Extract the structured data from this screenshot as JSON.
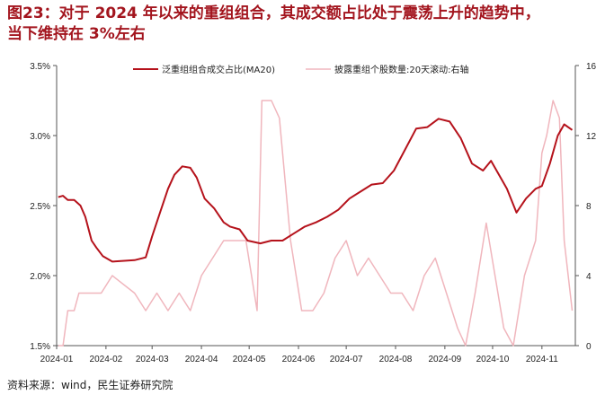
{
  "title": {
    "line1": "图23：对于 2024 年以来的重组组合，其成交额占比处于震荡上升的趋势中，",
    "line2": "当下维持在 3%左右"
  },
  "source": "资料来源：wind，民生证券研究院",
  "colors": {
    "series1": "#b5121b",
    "series2": "#f0b6bd",
    "axis": "#555555"
  },
  "chart_data": {
    "type": "line",
    "x_ticks": [
      "2024-01",
      "2024-02",
      "2024-03",
      "2024-04",
      "2024-05",
      "2024-06",
      "2024-07",
      "2024-08",
      "2024-09",
      "2024-10",
      "2024-11"
    ],
    "y_left": {
      "ticks": [
        "1.5%",
        "2.0%",
        "2.5%",
        "3.0%",
        "3.5%"
      ],
      "range": [
        1.5,
        3.5
      ]
    },
    "y_right": {
      "ticks": [
        "0",
        "4",
        "8",
        "12",
        "16"
      ],
      "range": [
        0,
        16
      ]
    },
    "legend_position": "top",
    "series": [
      {
        "name": "泛重组组合成交占比(MA20)",
        "axis": "left",
        "x": [
          "2024-01-02",
          "2024-01-05",
          "2024-01-08",
          "2024-01-12",
          "2024-01-16",
          "2024-01-19",
          "2024-01-23",
          "2024-01-26",
          "2024-01-30",
          "2024-02-05",
          "2024-02-19",
          "2024-02-26",
          "2024-03-01",
          "2024-03-06",
          "2024-03-11",
          "2024-03-15",
          "2024-03-20",
          "2024-03-25",
          "2024-03-29",
          "2024-04-03",
          "2024-04-09",
          "2024-04-15",
          "2024-04-19",
          "2024-04-25",
          "2024-04-30",
          "2024-05-08",
          "2024-05-15",
          "2024-05-22",
          "2024-05-29",
          "2024-06-05",
          "2024-06-12",
          "2024-06-19",
          "2024-06-26",
          "2024-07-03",
          "2024-07-10",
          "2024-07-17",
          "2024-07-24",
          "2024-07-31",
          "2024-08-07",
          "2024-08-14",
          "2024-08-21",
          "2024-08-28",
          "2024-09-04",
          "2024-09-11",
          "2024-09-18",
          "2024-09-25",
          "2024-09-30",
          "2024-10-10",
          "2024-10-16",
          "2024-10-22",
          "2024-10-28",
          "2024-11-01",
          "2024-11-06",
          "2024-11-11",
          "2024-11-15",
          "2024-11-20"
        ],
        "values": [
          2.56,
          2.57,
          2.54,
          2.54,
          2.5,
          2.42,
          2.25,
          2.2,
          2.14,
          2.1,
          2.11,
          2.13,
          2.28,
          2.45,
          2.62,
          2.72,
          2.78,
          2.77,
          2.7,
          2.55,
          2.48,
          2.38,
          2.35,
          2.33,
          2.25,
          2.23,
          2.25,
          2.25,
          2.3,
          2.35,
          2.38,
          2.42,
          2.47,
          2.55,
          2.6,
          2.65,
          2.66,
          2.75,
          2.9,
          3.05,
          3.06,
          3.12,
          3.1,
          2.98,
          2.8,
          2.75,
          2.82,
          2.62,
          2.45,
          2.55,
          2.62,
          2.64,
          2.8,
          3.0,
          3.08,
          3.04
        ]
      },
      {
        "name": "披露重组个股数量:20天滚动:右轴",
        "axis": "right",
        "x": [
          "2024-01-02",
          "2024-01-05",
          "2024-01-08",
          "2024-01-12",
          "2024-01-15",
          "2024-01-22",
          "2024-01-29",
          "2024-02-05",
          "2024-02-19",
          "2024-02-26",
          "2024-03-04",
          "2024-03-11",
          "2024-03-18",
          "2024-03-25",
          "2024-04-01",
          "2024-04-08",
          "2024-04-15",
          "2024-04-22",
          "2024-04-29",
          "2024-05-06",
          "2024-05-09",
          "2024-05-15",
          "2024-05-20",
          "2024-05-27",
          "2024-06-03",
          "2024-06-10",
          "2024-06-17",
          "2024-06-24",
          "2024-07-01",
          "2024-07-08",
          "2024-07-15",
          "2024-07-22",
          "2024-07-29",
          "2024-08-05",
          "2024-08-12",
          "2024-08-19",
          "2024-08-26",
          "2024-09-02",
          "2024-09-09",
          "2024-09-14",
          "2024-09-20",
          "2024-09-27",
          "2024-10-08",
          "2024-10-14",
          "2024-10-21",
          "2024-10-28",
          "2024-11-01",
          "2024-11-04",
          "2024-11-08",
          "2024-11-12",
          "2024-11-15",
          "2024-11-20"
        ],
        "values": [
          0,
          0,
          2,
          2,
          3,
          3,
          3,
          4,
          3,
          2,
          3,
          2,
          3,
          2,
          4,
          5,
          6,
          6,
          6,
          2,
          14,
          14,
          13,
          6,
          2,
          2,
          3,
          5,
          6,
          4,
          5,
          4,
          3,
          3,
          2,
          4,
          5,
          3,
          1,
          0,
          3,
          7,
          1,
          0,
          4,
          6,
          11,
          12,
          14,
          13,
          6,
          2
        ]
      }
    ]
  }
}
